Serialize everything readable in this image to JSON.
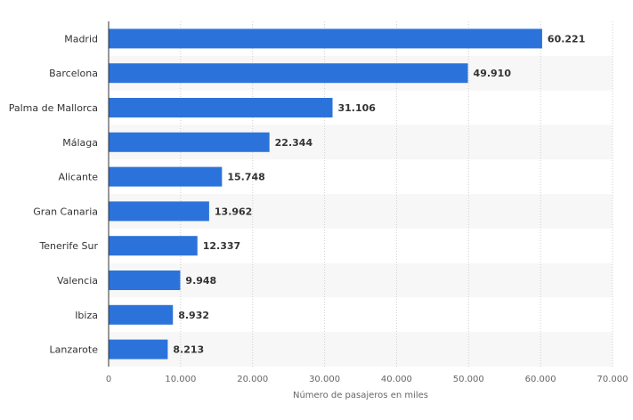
{
  "chart_data": {
    "type": "bar",
    "orientation": "horizontal",
    "categories": [
      "Madrid",
      "Barcelona",
      "Palma de Mallorca",
      "Málaga",
      "Alicante",
      "Gran Canaria",
      "Tenerife Sur",
      "Valencia",
      "Ibiza",
      "Lanzarote"
    ],
    "values": [
      60221,
      49910,
      31106,
      22344,
      15748,
      13962,
      12337,
      9948,
      8932,
      8213
    ],
    "value_labels": [
      "60.221",
      "49.910",
      "31.106",
      "22.344",
      "15.748",
      "13.962",
      "12.337",
      "9.948",
      "8.932",
      "8.213"
    ],
    "xlabel": "Número de pasajeros en miles",
    "xlim": [
      0,
      70000
    ],
    "xticks": [
      0,
      10000,
      20000,
      30000,
      40000,
      50000,
      60000,
      70000
    ],
    "xtick_labels": [
      "0",
      "10.000",
      "20.000",
      "30.000",
      "40.000",
      "50.000",
      "60.000",
      "70.000"
    ],
    "grid": true,
    "colors": {
      "bar": "#2b73db",
      "band": "#f7f7f7",
      "grid": "#cfcfcf",
      "axis": "#333333"
    }
  }
}
